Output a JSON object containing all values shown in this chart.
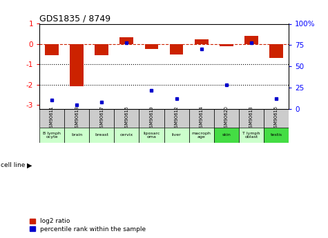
{
  "title": "GDS1835 / 8749",
  "samples": [
    "GSM90611",
    "GSM90618",
    "GSM90617",
    "GSM90615",
    "GSM90619",
    "GSM90612",
    "GSM90614",
    "GSM90620",
    "GSM90613",
    "GSM90616"
  ],
  "cell_lines": [
    "B lymph\nocyte",
    "brain",
    "breast",
    "cervix",
    "liposarc\noma",
    "liver",
    "macroph\nage",
    "skin",
    "T lymph\noblast",
    "testis"
  ],
  "cell_line_colors": [
    "#ccffcc",
    "#ccffcc",
    "#ccffcc",
    "#ccffcc",
    "#ccffcc",
    "#ccffcc",
    "#ccffcc",
    "#44dd44",
    "#ccffcc",
    "#44dd44"
  ],
  "log2_ratio": [
    -0.55,
    -2.1,
    -0.55,
    0.35,
    -0.25,
    -0.5,
    0.22,
    -0.1,
    0.4,
    -0.7
  ],
  "percentile_rank": [
    10,
    5,
    8,
    78,
    22,
    12,
    70,
    28,
    78,
    12
  ],
  "bar_color": "#cc2200",
  "dot_color": "#0000cc",
  "ylim": [
    -3.2,
    1.0
  ],
  "right_ylim": [
    0,
    100
  ],
  "right_yticks": [
    0,
    25,
    50,
    75,
    100
  ],
  "right_yticklabels": [
    "0",
    "25",
    "50",
    "75",
    "100%"
  ],
  "left_yticks": [
    -3,
    -2,
    -1,
    0,
    1
  ],
  "dotted_lines": [
    -1,
    -2
  ],
  "gsm_row_color": "#cccccc",
  "light_green": "#ccffcc",
  "dark_green": "#44dd44"
}
